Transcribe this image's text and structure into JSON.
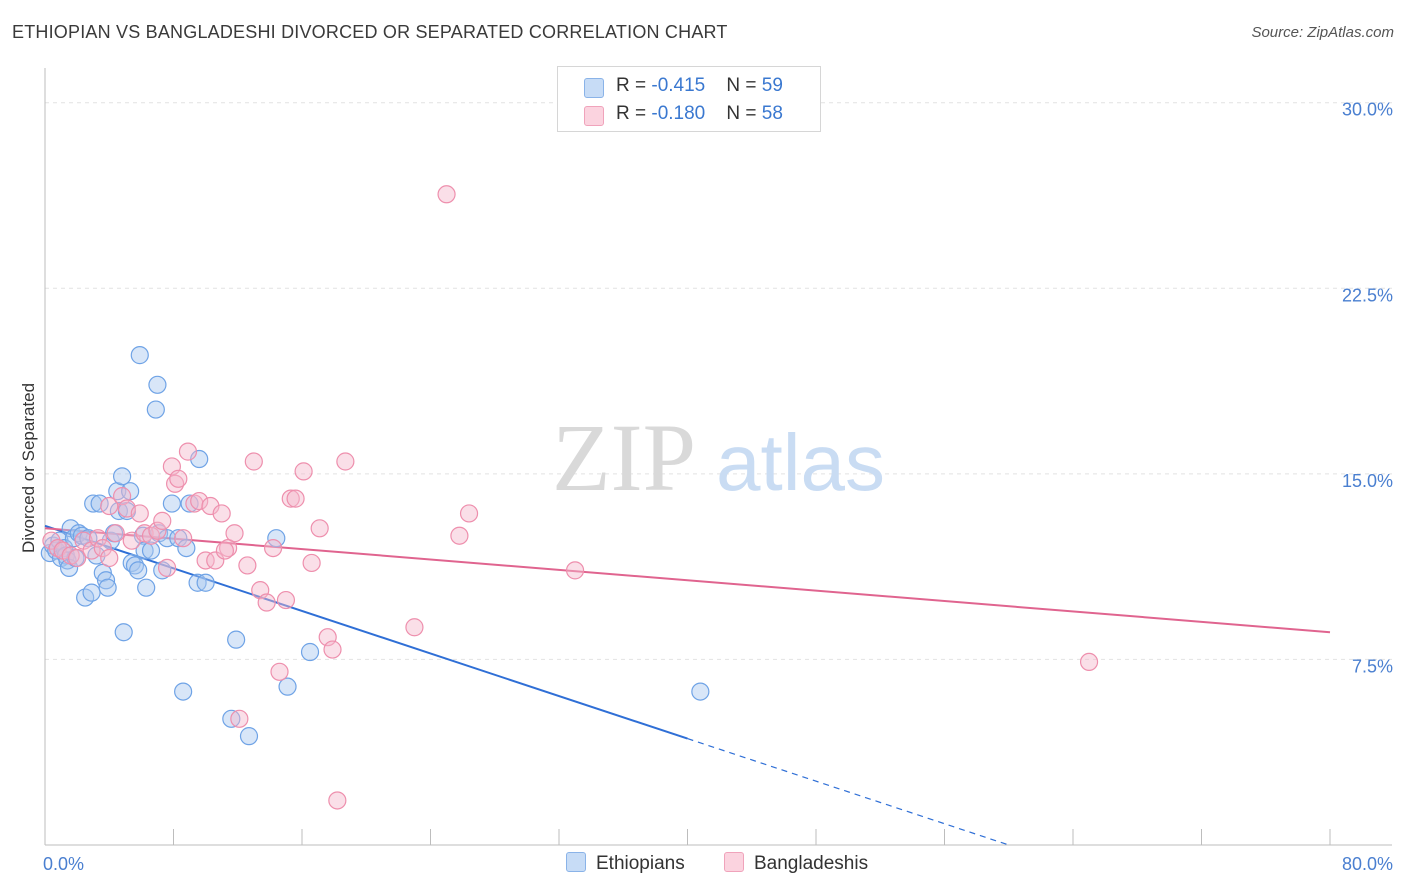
{
  "title": "ETHIOPIAN VS BANGLADESHI DIVORCED OR SEPARATED CORRELATION CHART",
  "source": "Source: ZipAtlas.com",
  "watermark": {
    "zip": "ZIP",
    "atlas": "atlas"
  },
  "legend": {
    "rows": [
      {
        "r_label": "R = ",
        "r_value": "-0.415",
        "n_label": "N = ",
        "n_value": "59",
        "color": "#a9c8f0"
      },
      {
        "r_label": "R = ",
        "r_value": "-0.180",
        "n_label": "N = ",
        "n_value": "58",
        "color": "#f5b8cb"
      }
    ]
  },
  "bottom_legend": [
    {
      "label": "Ethiopians",
      "color": "#a9c8f0"
    },
    {
      "label": "Bangladeshis",
      "color": "#f5b8cb"
    }
  ],
  "chart_data": {
    "type": "scatter",
    "title": "ETHIOPIAN VS BANGLADESHI DIVORCED OR SEPARATED CORRELATION CHART",
    "xlabel": "",
    "ylabel": "Divorced or Separated",
    "xlim": [
      0,
      80
    ],
    "ylim": [
      0,
      31
    ],
    "x_tick_labels": [
      {
        "value": 0,
        "label": "0.0%"
      },
      {
        "value": 80,
        "label": "80.0%"
      }
    ],
    "y_tick_labels": [
      {
        "value": 7.5,
        "label": "7.5%"
      },
      {
        "value": 15,
        "label": "15.0%"
      },
      {
        "value": 22.5,
        "label": "22.5%"
      },
      {
        "value": 30,
        "label": "30.0%"
      }
    ],
    "grid": true,
    "legend_position": "top-center",
    "series": [
      {
        "name": "Ethiopians",
        "color": "#6fa3e6",
        "fill": "#a9c8f0",
        "line_color": "#2f6fd6",
        "trend": {
          "x": [
            0,
            40
          ],
          "y": [
            12.9,
            4.3
          ],
          "dashed_to": [
            60,
            0
          ]
        },
        "points": [
          [
            0.3,
            11.8
          ],
          [
            0.5,
            12.1
          ],
          [
            0.7,
            11.9
          ],
          [
            0.9,
            12.3
          ],
          [
            1.0,
            11.6
          ],
          [
            1.2,
            12.0
          ],
          [
            1.3,
            11.7
          ],
          [
            1.4,
            11.5
          ],
          [
            1.5,
            11.2
          ],
          [
            1.6,
            12.8
          ],
          [
            1.8,
            12.4
          ],
          [
            1.9,
            11.6
          ],
          [
            2.1,
            12.6
          ],
          [
            2.3,
            12.5
          ],
          [
            2.5,
            10.0
          ],
          [
            2.7,
            12.4
          ],
          [
            2.9,
            10.2
          ],
          [
            3.0,
            13.8
          ],
          [
            3.2,
            11.7
          ],
          [
            3.4,
            13.8
          ],
          [
            3.6,
            11.0
          ],
          [
            3.8,
            10.7
          ],
          [
            3.9,
            10.4
          ],
          [
            4.1,
            12.3
          ],
          [
            4.3,
            12.6
          ],
          [
            4.5,
            14.3
          ],
          [
            4.6,
            13.5
          ],
          [
            4.8,
            14.9
          ],
          [
            4.9,
            8.6
          ],
          [
            5.1,
            13.5
          ],
          [
            5.3,
            14.3
          ],
          [
            5.4,
            11.4
          ],
          [
            5.6,
            11.3
          ],
          [
            5.8,
            11.1
          ],
          [
            5.9,
            19.8
          ],
          [
            6.1,
            12.5
          ],
          [
            6.2,
            11.9
          ],
          [
            6.3,
            10.4
          ],
          [
            6.6,
            11.9
          ],
          [
            6.9,
            17.6
          ],
          [
            7.0,
            18.6
          ],
          [
            7.1,
            12.6
          ],
          [
            7.3,
            11.1
          ],
          [
            7.6,
            12.4
          ],
          [
            7.9,
            13.8
          ],
          [
            8.3,
            12.4
          ],
          [
            8.6,
            6.2
          ],
          [
            8.8,
            12.0
          ],
          [
            9.0,
            13.8
          ],
          [
            9.5,
            10.6
          ],
          [
            9.6,
            15.6
          ],
          [
            10.0,
            10.6
          ],
          [
            11.6,
            5.1
          ],
          [
            11.9,
            8.3
          ],
          [
            12.7,
            4.4
          ],
          [
            14.4,
            12.4
          ],
          [
            15.1,
            6.4
          ],
          [
            16.5,
            7.8
          ],
          [
            40.8,
            6.2
          ]
        ]
      },
      {
        "name": "Bangladeshis",
        "color": "#ee8fad",
        "fill": "#f5b8cb",
        "line_color": "#e0648f",
        "trend": {
          "x": [
            0,
            80
          ],
          "y": [
            12.8,
            8.6
          ]
        },
        "points": [
          [
            0.4,
            12.3
          ],
          [
            0.8,
            12.0
          ],
          [
            1.1,
            11.9
          ],
          [
            1.6,
            11.7
          ],
          [
            2.0,
            11.6
          ],
          [
            2.4,
            12.3
          ],
          [
            2.9,
            11.9
          ],
          [
            3.3,
            12.4
          ],
          [
            3.6,
            12.0
          ],
          [
            4.0,
            13.7
          ],
          [
            4.4,
            12.6
          ],
          [
            4.8,
            14.1
          ],
          [
            5.1,
            13.6
          ],
          [
            5.4,
            12.3
          ],
          [
            5.9,
            13.4
          ],
          [
            6.2,
            12.6
          ],
          [
            6.6,
            12.5
          ],
          [
            7.0,
            12.7
          ],
          [
            7.3,
            13.1
          ],
          [
            7.6,
            11.2
          ],
          [
            7.9,
            15.3
          ],
          [
            8.1,
            14.6
          ],
          [
            8.3,
            14.8
          ],
          [
            8.6,
            12.4
          ],
          [
            8.9,
            15.9
          ],
          [
            9.3,
            13.8
          ],
          [
            9.6,
            13.9
          ],
          [
            10.0,
            11.5
          ],
          [
            10.3,
            13.7
          ],
          [
            10.6,
            11.5
          ],
          [
            11.0,
            13.4
          ],
          [
            11.4,
            12.0
          ],
          [
            11.8,
            12.6
          ],
          [
            12.1,
            5.1
          ],
          [
            12.6,
            11.3
          ],
          [
            13.0,
            15.5
          ],
          [
            13.4,
            10.3
          ],
          [
            13.8,
            9.8
          ],
          [
            14.2,
            12.0
          ],
          [
            14.6,
            7.0
          ],
          [
            15.0,
            9.9
          ],
          [
            15.3,
            14.0
          ],
          [
            15.6,
            14.0
          ],
          [
            16.1,
            15.1
          ],
          [
            16.6,
            11.4
          ],
          [
            17.1,
            12.8
          ],
          [
            17.6,
            8.4
          ],
          [
            17.9,
            7.9
          ],
          [
            18.2,
            1.8
          ],
          [
            18.7,
            15.5
          ],
          [
            23.0,
            8.8
          ],
          [
            25.0,
            26.3
          ],
          [
            25.8,
            12.5
          ],
          [
            26.4,
            13.4
          ],
          [
            33.0,
            11.1
          ],
          [
            65.0,
            7.4
          ],
          [
            11.2,
            11.9
          ],
          [
            4.0,
            11.6
          ]
        ]
      }
    ]
  }
}
